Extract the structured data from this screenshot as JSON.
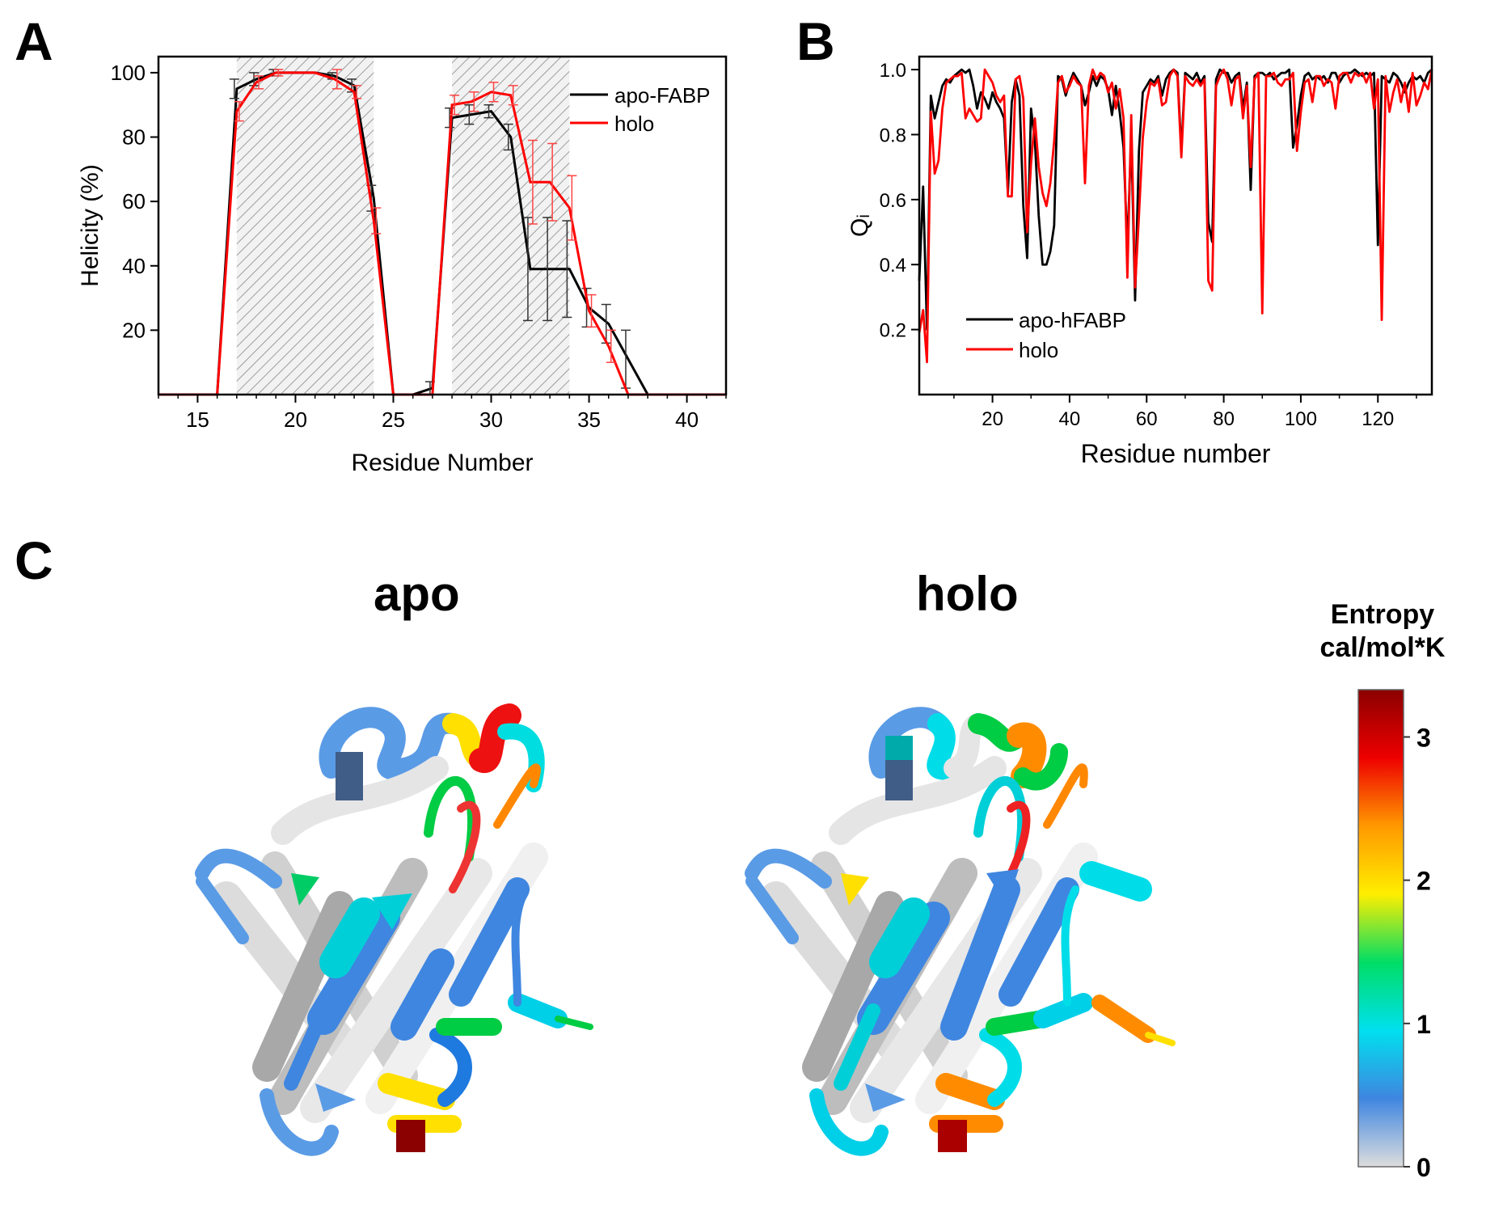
{
  "panels": {
    "a": {
      "letter": "A"
    },
    "b": {
      "letter": "B"
    },
    "c": {
      "letter": "C"
    }
  },
  "colors": {
    "apo": "#000000",
    "holo": "#ff0000"
  },
  "chart_data": [
    {
      "panel": "A",
      "type": "line",
      "title": "",
      "xlabel": "Residue Number",
      "ylabel": "Helicity (%)",
      "xlim": [
        13,
        42
      ],
      "ylim": [
        0,
        105
      ],
      "xticks": [
        15,
        20,
        25,
        30,
        35,
        40
      ],
      "yticks": [
        20,
        40,
        60,
        80,
        100
      ],
      "shaded_ranges": [
        [
          17,
          24
        ],
        [
          28,
          34
        ]
      ],
      "legend": "top-right",
      "series": [
        {
          "name": "apo-FABP",
          "color": "#000000",
          "x": [
            13,
            14,
            15,
            16,
            17,
            18,
            19,
            20,
            21,
            22,
            23,
            24,
            25,
            26,
            27,
            28,
            29,
            30,
            31,
            32,
            33,
            34,
            35,
            36,
            37,
            38,
            39,
            40,
            41,
            42
          ],
          "y": [
            0,
            0,
            0,
            0,
            95,
            98,
            100,
            100,
            100,
            99,
            96,
            61,
            0,
            0,
            2,
            86,
            87,
            88,
            80,
            39,
            39,
            39,
            27,
            22,
            11,
            0,
            0,
            0,
            0,
            0
          ],
          "err": [
            0,
            0,
            0,
            0,
            3,
            2,
            1,
            0,
            0,
            1,
            2,
            4,
            0,
            0,
            2,
            3,
            3,
            2,
            4,
            16,
            16,
            15,
            6,
            6,
            9,
            0,
            0,
            0,
            0,
            0
          ]
        },
        {
          "name": "holo",
          "color": "#ff0000",
          "x": [
            13,
            14,
            15,
            16,
            17,
            18,
            19,
            20,
            21,
            22,
            23,
            24,
            25,
            26,
            27,
            28,
            29,
            30,
            31,
            32,
            33,
            34,
            35,
            36,
            37,
            38,
            39,
            40,
            41,
            42
          ],
          "y": [
            0,
            0,
            0,
            0,
            88,
            97,
            100,
            100,
            100,
            98,
            94,
            54,
            0,
            0,
            0,
            90,
            91,
            94,
            93,
            66,
            66,
            58,
            26,
            15,
            0,
            0,
            0,
            0,
            0,
            0
          ],
          "err": [
            0,
            0,
            0,
            0,
            3,
            2,
            1,
            0,
            0,
            3,
            2,
            4,
            0,
            0,
            0,
            3,
            3,
            3,
            3,
            13,
            12,
            10,
            5,
            5,
            0,
            0,
            0,
            0,
            0,
            0
          ]
        }
      ]
    },
    {
      "panel": "B",
      "type": "line",
      "title": "",
      "xlabel": "Residue number",
      "ylabel": "Qᵢ",
      "xlim": [
        1,
        134
      ],
      "ylim": [
        0.0,
        1.04
      ],
      "xticks": [
        20,
        40,
        60,
        80,
        100,
        120
      ],
      "yticks": [
        0.2,
        0.4,
        0.6,
        0.8,
        1.0
      ],
      "legend": "bottom-left",
      "series": [
        {
          "name": "apo-hFABP",
          "color": "#000000",
          "x": [
            1,
            2,
            3,
            4,
            5,
            6,
            7,
            8,
            9,
            10,
            11,
            12,
            13,
            14,
            15,
            16,
            17,
            18,
            19,
            20,
            21,
            22,
            23,
            24,
            25,
            26,
            27,
            28,
            29,
            30,
            31,
            32,
            33,
            34,
            35,
            36,
            37,
            38,
            39,
            40,
            41,
            42,
            43,
            44,
            45,
            46,
            47,
            48,
            49,
            50,
            51,
            52,
            53,
            54,
            55,
            56,
            57,
            58,
            59,
            60,
            61,
            62,
            63,
            64,
            65,
            66,
            67,
            68,
            69,
            70,
            71,
            72,
            73,
            74,
            75,
            76,
            77,
            78,
            79,
            80,
            81,
            82,
            83,
            84,
            85,
            86,
            87,
            88,
            89,
            90,
            91,
            92,
            93,
            94,
            95,
            96,
            97,
            98,
            99,
            100,
            101,
            102,
            103,
            104,
            105,
            106,
            107,
            108,
            109,
            110,
            111,
            112,
            113,
            114,
            115,
            116,
            117,
            118,
            119,
            120,
            121,
            122,
            123,
            124,
            125,
            126,
            127,
            128,
            129,
            130,
            131,
            132,
            133,
            134
          ],
          "y": [
            0.35,
            0.64,
            0.2,
            0.92,
            0.85,
            0.9,
            0.95,
            0.97,
            0.96,
            0.98,
            0.99,
            1.0,
            0.99,
            1.0,
            0.95,
            0.88,
            0.93,
            0.91,
            0.88,
            0.93,
            0.9,
            0.88,
            0.85,
            0.62,
            0.9,
            0.97,
            0.92,
            0.58,
            0.42,
            0.88,
            0.78,
            0.55,
            0.4,
            0.4,
            0.44,
            0.52,
            0.98,
            0.97,
            0.92,
            0.96,
            0.99,
            0.97,
            0.95,
            0.89,
            0.93,
            0.98,
            0.95,
            0.98,
            0.97,
            0.94,
            0.86,
            0.95,
            0.87,
            0.76,
            0.45,
            0.8,
            0.29,
            0.75,
            0.93,
            0.95,
            0.97,
            0.96,
            0.98,
            0.92,
            0.97,
            0.99,
            1.0,
            0.99,
            0.75,
            0.99,
            0.98,
            0.97,
            0.99,
            0.96,
            0.98,
            0.53,
            0.47,
            0.97,
            1.0,
            0.99,
            0.99,
            0.96,
            0.98,
            0.99,
            0.88,
            0.96,
            0.63,
            0.98,
            0.99,
            0.99,
            0.98,
            0.99,
            0.97,
            0.98,
            0.99,
            0.99,
            1.0,
            0.76,
            0.83,
            0.92,
            0.98,
            0.99,
            0.97,
            0.98,
            0.97,
            0.98,
            0.96,
            0.99,
            0.99,
            0.96,
            0.98,
            0.99,
            0.99,
            1.0,
            0.99,
            0.98,
            0.99,
            0.98,
            0.99,
            0.46,
            0.98,
            0.97,
            0.96,
            0.99,
            0.98,
            0.96,
            0.93,
            0.96,
            0.98,
            0.97,
            0.98,
            0.96,
            0.99,
            1.0
          ]
        },
        {
          "name": "holo",
          "color": "#ff0000",
          "x": [
            1,
            2,
            3,
            4,
            5,
            6,
            7,
            8,
            9,
            10,
            11,
            12,
            13,
            14,
            15,
            16,
            17,
            18,
            19,
            20,
            21,
            22,
            23,
            24,
            25,
            26,
            27,
            28,
            29,
            30,
            31,
            32,
            33,
            34,
            35,
            36,
            37,
            38,
            39,
            40,
            41,
            42,
            43,
            44,
            45,
            46,
            47,
            48,
            49,
            50,
            51,
            52,
            53,
            54,
            55,
            56,
            57,
            58,
            59,
            60,
            61,
            62,
            63,
            64,
            65,
            66,
            67,
            68,
            69,
            70,
            71,
            72,
            73,
            74,
            75,
            76,
            77,
            78,
            79,
            80,
            81,
            82,
            83,
            84,
            85,
            86,
            87,
            88,
            89,
            90,
            91,
            92,
            93,
            94,
            95,
            96,
            97,
            98,
            99,
            100,
            101,
            102,
            103,
            104,
            105,
            106,
            107,
            108,
            109,
            110,
            111,
            112,
            113,
            114,
            115,
            116,
            117,
            118,
            119,
            120,
            121,
            122,
            123,
            124,
            125,
            126,
            127,
            128,
            129,
            130,
            131,
            132,
            133,
            134
          ],
          "y": [
            0.19,
            0.26,
            0.1,
            0.87,
            0.68,
            0.72,
            0.88,
            0.96,
            0.97,
            0.98,
            0.98,
            0.99,
            0.85,
            0.88,
            0.86,
            0.84,
            0.85,
            1.0,
            0.98,
            0.96,
            0.92,
            0.9,
            0.92,
            0.61,
            0.61,
            0.97,
            0.98,
            0.91,
            0.5,
            0.71,
            0.85,
            0.7,
            0.62,
            0.58,
            0.65,
            0.78,
            0.96,
            0.98,
            0.93,
            0.95,
            0.98,
            0.96,
            0.95,
            0.65,
            0.95,
            1.0,
            0.97,
            0.99,
            0.98,
            0.93,
            0.96,
            0.88,
            0.94,
            0.85,
            0.36,
            0.86,
            0.33,
            0.55,
            0.79,
            0.9,
            0.96,
            0.95,
            0.97,
            0.89,
            0.9,
            0.98,
            1.0,
            0.98,
            0.73,
            0.98,
            0.96,
            0.95,
            0.97,
            0.95,
            0.97,
            0.35,
            0.32,
            0.95,
            0.98,
            1.0,
            0.97,
            0.89,
            0.97,
            0.98,
            0.85,
            0.95,
            0.7,
            0.97,
            0.99,
            0.25,
            0.98,
            0.98,
            0.99,
            0.96,
            0.95,
            0.97,
            0.97,
            0.99,
            0.75,
            0.87,
            0.96,
            0.97,
            0.9,
            0.98,
            0.98,
            0.95,
            0.97,
            0.96,
            0.88,
            0.98,
            0.99,
            0.99,
            0.96,
            0.99,
            0.98,
            0.99,
            0.96,
            0.99,
            0.88,
            0.97,
            0.23,
            0.98,
            0.87,
            0.93,
            0.97,
            0.9,
            0.96,
            0.87,
            0.99,
            0.89,
            0.92,
            0.96,
            0.94,
            1.0
          ]
        }
      ]
    }
  ],
  "structures": {
    "apo_title": "apo",
    "holo_title": "holo",
    "structure_icon_apo": "protein-ribbon-apo",
    "structure_icon_holo": "protein-ribbon-holo"
  },
  "colorbar": {
    "title_line1": "Entropy",
    "title_line2": "cal/mol*K",
    "ticks": [
      "3",
      "2",
      "1",
      "0"
    ],
    "tick_values": [
      3,
      2,
      1,
      0
    ],
    "min": 0,
    "max": 3.33,
    "gradient": [
      "#dddddd",
      "#3f86e0",
      "#00e0ee",
      "#00dd66",
      "#ffee00",
      "#ff9900",
      "#ee0000",
      "#8b0000"
    ]
  }
}
